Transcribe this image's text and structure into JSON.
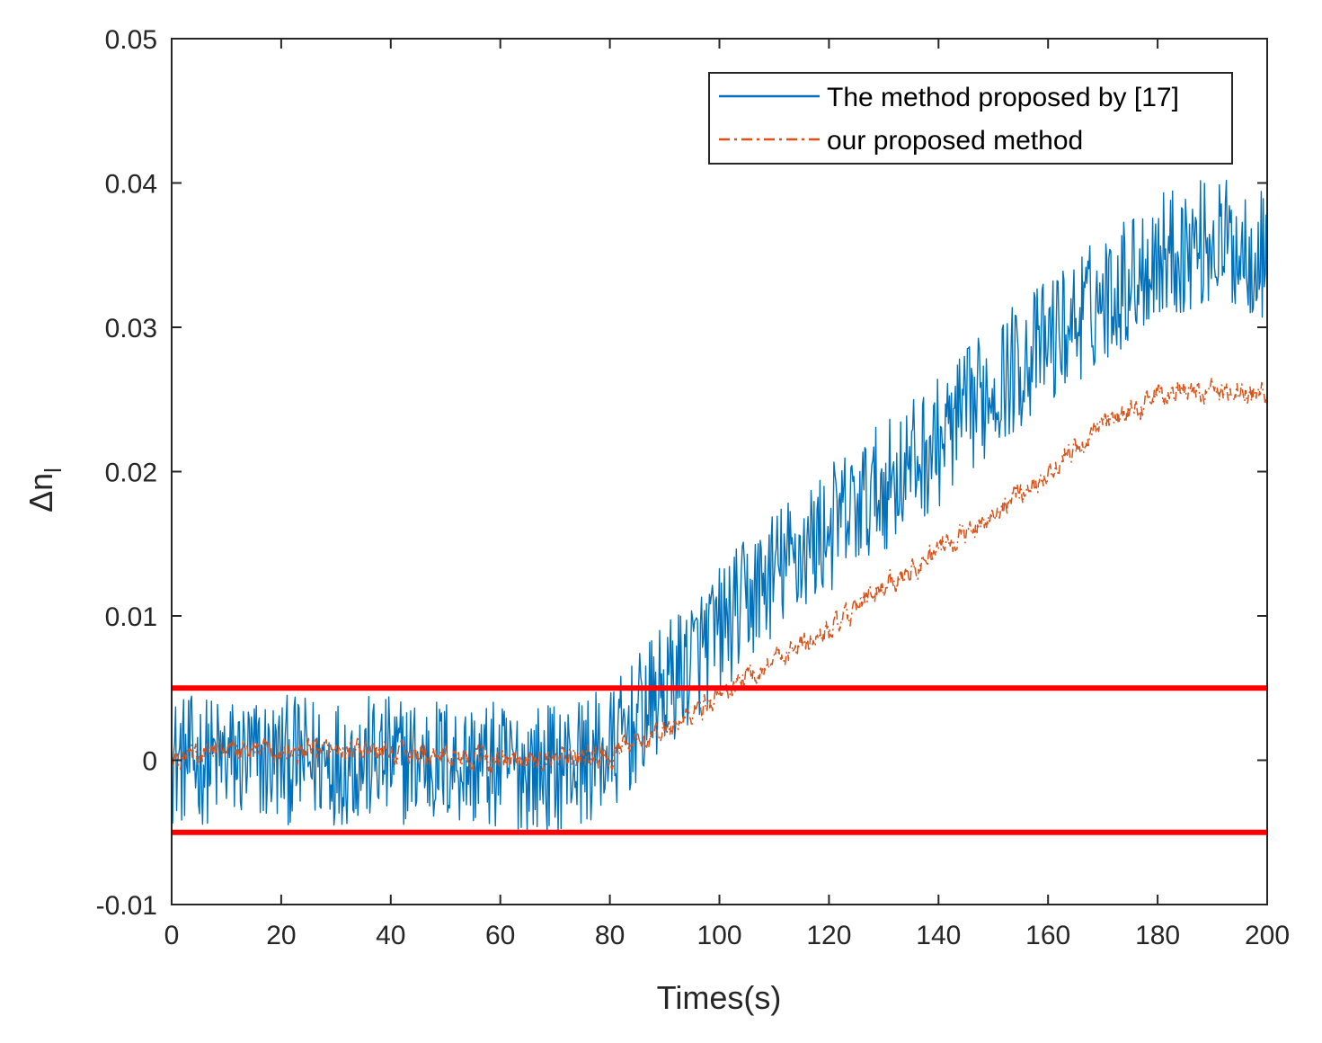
{
  "chart_data": {
    "type": "line",
    "xlabel": "Times(s)",
    "ylabel_main": "Δn",
    "ylabel_sub": "l",
    "xlim": [
      0,
      200
    ],
    "ylim": [
      -0.01,
      0.05
    ],
    "x_ticks": [
      0,
      20,
      40,
      60,
      80,
      100,
      120,
      140,
      160,
      180,
      200
    ],
    "x_tick_labels": [
      "0",
      "20",
      "40",
      "60",
      "80",
      "100",
      "120",
      "140",
      "160",
      "180",
      "200"
    ],
    "y_ticks": [
      -0.01,
      0,
      0.01,
      0.02,
      0.03,
      0.04,
      0.05
    ],
    "y_tick_labels": [
      "-0.01",
      "0",
      "0.01",
      "0.02",
      "0.03",
      "0.04",
      "0.05"
    ],
    "grid": false,
    "legend_position": "top-right",
    "thresholds": [
      {
        "y": 0.005,
        "color": "#ff0000"
      },
      {
        "y": -0.005,
        "color": "#ff0000"
      }
    ],
    "series": [
      {
        "name": "The method proposed by [17]",
        "color": "#0072BD",
        "line_style": "solid",
        "noise_amplitude": 0.0045,
        "trend": {
          "x": [
            0,
            10,
            20,
            30,
            40,
            50,
            60,
            70,
            80,
            90,
            100,
            110,
            120,
            130,
            140,
            150,
            160,
            170,
            180,
            190,
            200
          ],
          "y": [
            0.0,
            0.0,
            0.0,
            0.0,
            0.0,
            0.0,
            -0.0005,
            -0.0005,
            0.0005,
            0.005,
            0.009,
            0.013,
            0.016,
            0.019,
            0.022,
            0.026,
            0.029,
            0.032,
            0.035,
            0.036,
            0.035
          ]
        }
      },
      {
        "name": "our proposed method",
        "color": "#D95319",
        "line_style": "dash-dot",
        "noise_amplitude": 0.0009,
        "trend": {
          "x": [
            0,
            10,
            20,
            30,
            40,
            50,
            60,
            70,
            80,
            90,
            100,
            110,
            120,
            130,
            140,
            150,
            160,
            170,
            180,
            190,
            200
          ],
          "y": [
            0.0,
            0.0007,
            0.0005,
            0.0007,
            0.0005,
            0.0003,
            0.0,
            0.0,
            0.0003,
            0.002,
            0.0045,
            0.007,
            0.009,
            0.012,
            0.0145,
            0.017,
            0.02,
            0.023,
            0.0255,
            0.0255,
            0.0255
          ]
        }
      }
    ]
  }
}
